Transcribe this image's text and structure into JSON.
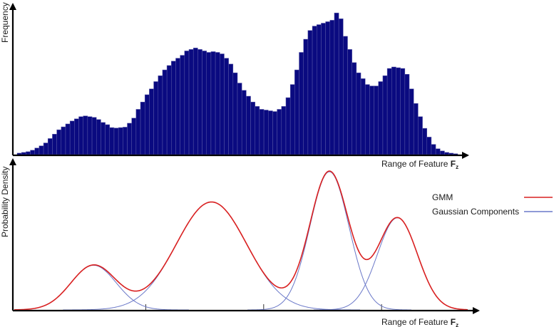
{
  "chart_data": [
    {
      "type": "bar",
      "panel": "histogram",
      "xlabel": "Range of Feature",
      "xlabel_bold": "F",
      "xlabel_sub": "z",
      "ylabel": "Frequency",
      "bar_color": "#0a0a80",
      "bar_edge_color": "#5a5aa8",
      "ylim": [
        0,
        100
      ],
      "values": [
        1,
        1.5,
        2,
        3,
        4.5,
        6,
        8,
        11,
        14,
        17,
        19,
        21,
        23,
        24.5,
        26,
        26.5,
        26,
        25.5,
        24,
        22,
        20.5,
        18.5,
        18.2,
        18.5,
        18.8,
        21.5,
        25,
        31,
        36,
        41,
        45,
        50,
        54,
        58,
        61,
        64,
        66,
        68,
        71,
        72,
        73,
        72,
        71,
        70,
        70.5,
        70,
        69,
        66,
        62,
        56,
        49,
        44,
        40,
        36,
        33,
        31,
        30.5,
        30,
        29.5,
        31,
        33,
        39,
        48,
        58,
        70,
        79,
        85,
        88,
        89,
        90,
        91,
        92,
        97,
        93,
        81,
        72,
        63,
        56,
        52,
        48,
        47,
        47,
        50,
        54,
        59,
        60,
        59.5,
        59,
        55,
        45,
        35,
        26,
        18,
        12,
        7,
        4,
        2.5,
        1.5,
        1,
        0.6
      ]
    },
    {
      "type": "line",
      "panel": "gmm",
      "xlabel": "Range of Feature",
      "xlabel_bold": "F",
      "xlabel_sub": "z",
      "ylabel": "Probability Density",
      "x_range": [
        0,
        100
      ],
      "ylim": [
        0,
        100
      ],
      "tick_positions": [
        29,
        55,
        81
      ],
      "gmm_color": "#d92020",
      "component_color": "#6a78c8",
      "components": [
        {
          "weight": 31,
          "mean": 17.5,
          "sd": 5.0
        },
        {
          "weight": 75,
          "mean": 43.5,
          "sd": 7.8
        },
        {
          "weight": 96,
          "mean": 69.5,
          "sd": 4.3
        },
        {
          "weight": 64,
          "mean": 84.5,
          "sd": 4.4
        }
      ],
      "legend": [
        {
          "label": "GMM",
          "series": "gmm"
        },
        {
          "label": "Gaussian Components",
          "series": "components"
        }
      ],
      "legend_position": "right"
    }
  ]
}
